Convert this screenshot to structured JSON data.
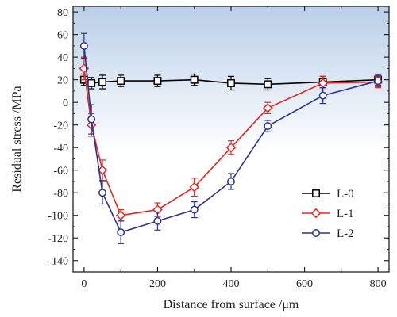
{
  "chart_data": {
    "type": "line",
    "xlabel": "Distance from surface /μm",
    "ylabel": "Residual stress /MPa",
    "xlim": [
      -30,
      830
    ],
    "ylim": [
      -150,
      85
    ],
    "xticks": [
      0,
      200,
      400,
      600,
      800
    ],
    "yticks": [
      80,
      60,
      40,
      20,
      0,
      -20,
      -40,
      -60,
      -80,
      -100,
      -120,
      -140
    ],
    "background_gradient": {
      "top": "#b9cfe8",
      "bottom": "#ffffff"
    },
    "legend_position": "bottom-right",
    "series": [
      {
        "name": "L-0",
        "color": "#000000",
        "marker": "square",
        "x": [
          0,
          20,
          50,
          100,
          200,
          300,
          400,
          500,
          650,
          800
        ],
        "y": [
          20,
          17,
          18,
          19,
          19,
          20,
          17,
          16,
          18,
          20
        ],
        "err": [
          5,
          5,
          6,
          5,
          5,
          5,
          6,
          5,
          5,
          5
        ]
      },
      {
        "name": "L-1",
        "color": "#e8261f",
        "marker": "diamond",
        "x": [
          0,
          20,
          50,
          100,
          200,
          300,
          400,
          500,
          650,
          800
        ],
        "y": [
          30,
          -20,
          -60,
          -100,
          -95,
          -75,
          -40,
          -5,
          17,
          18
        ],
        "err": [
          10,
          10,
          9,
          5,
          6,
          8,
          6,
          5,
          6,
          5
        ]
      },
      {
        "name": "L-2",
        "color": "#2e3192",
        "marker": "circle",
        "x": [
          0,
          20,
          50,
          100,
          200,
          300,
          400,
          500,
          650,
          800
        ],
        "y": [
          50,
          -15,
          -80,
          -115,
          -105,
          -95,
          -70,
          -21,
          6,
          19
        ],
        "err": [
          11,
          13,
          10,
          10,
          8,
          7,
          7,
          5,
          7,
          5
        ]
      }
    ]
  }
}
